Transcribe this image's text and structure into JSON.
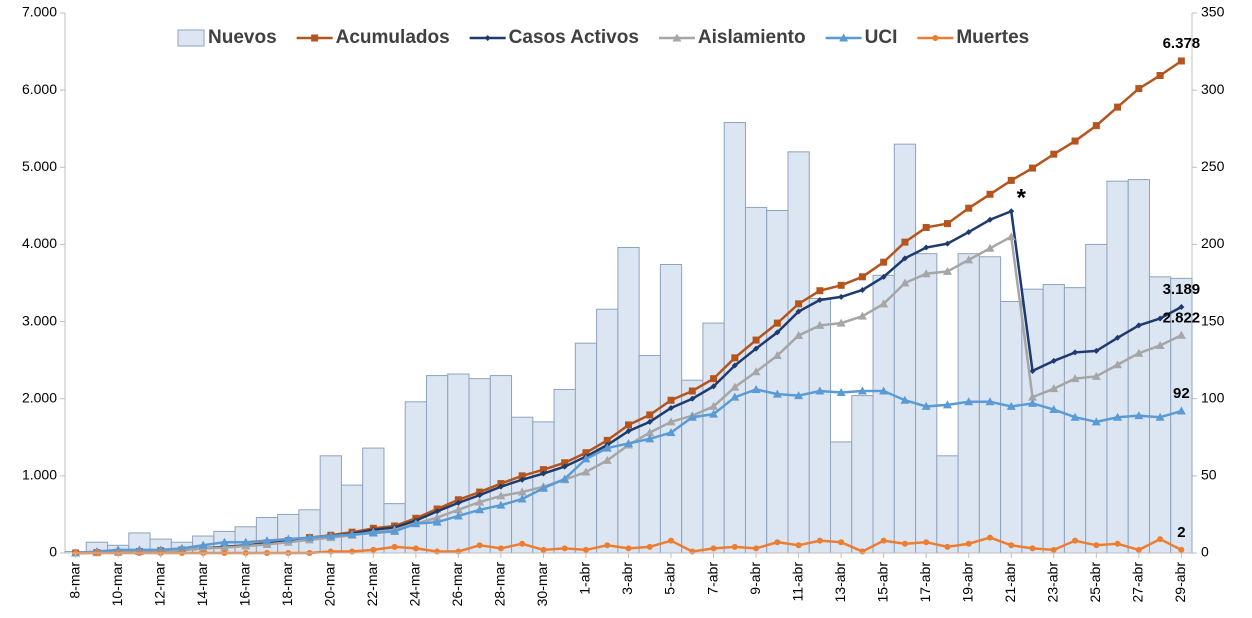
{
  "chart_data": {
    "type": "combo",
    "categories": [
      "8-mar",
      null,
      "10-mar",
      null,
      "12-mar",
      null,
      "14-mar",
      null,
      "16-mar",
      null,
      "18-mar",
      null,
      "20-mar",
      null,
      "22-mar",
      null,
      "24-mar",
      null,
      "26-mar",
      null,
      "28-mar",
      null,
      "30-mar",
      null,
      "1-abr",
      null,
      "3-abr",
      null,
      "5-abr",
      null,
      "7-abr",
      null,
      "9-abr",
      null,
      "11-abr",
      null,
      "13-abr",
      null,
      "15-abr",
      null,
      "17-abr",
      null,
      "19-abr",
      null,
      "21-abr",
      null,
      "23-abr",
      null,
      "25-abr",
      null,
      "27-abr",
      null,
      "29-abr"
    ],
    "series": [
      {
        "name": "Nuevos",
        "type": "bar",
        "axis": "y2",
        "color": "#dce6f2",
        "edge": "#8ea2bd",
        "values": [
          1,
          7,
          5,
          13,
          9,
          7,
          11,
          14,
          17,
          23,
          25,
          28,
          63,
          44,
          68,
          32,
          98,
          115,
          116,
          113,
          115,
          88,
          85,
          106,
          136,
          158,
          198,
          128,
          187,
          112,
          149,
          279,
          224,
          222,
          260,
          165,
          72,
          102,
          180,
          265,
          194,
          63,
          194,
          192,
          163,
          171,
          174,
          172,
          200,
          241,
          242,
          179,
          178
        ]
      },
      {
        "name": "Acumulados",
        "type": "line",
        "axis": "y",
        "color": "#b5541c",
        "marker": "square",
        "values": [
          0,
          5,
          10,
          20,
          30,
          40,
          60,
          80,
          100,
          130,
          160,
          200,
          230,
          270,
          320,
          350,
          450,
          570,
          690,
          790,
          900,
          1000,
          1080,
          1170,
          1300,
          1460,
          1660,
          1790,
          1980,
          2100,
          2260,
          2530,
          2760,
          2980,
          3230,
          3400,
          3470,
          3580,
          3770,
          4030,
          4220,
          4270,
          4470,
          4650,
          4830,
          4990,
          5170,
          5340,
          5540,
          5780,
          6020,
          6190,
          6378
        ],
        "value_labels": [
          null,
          null,
          null,
          null,
          null,
          null,
          null,
          null,
          null,
          null,
          null,
          null,
          null,
          null,
          null,
          null,
          null,
          null,
          null,
          null,
          null,
          null,
          null,
          null,
          null,
          null,
          null,
          null,
          null,
          null,
          null,
          null,
          null,
          null,
          null,
          null,
          null,
          null,
          null,
          null,
          null,
          null,
          null,
          null,
          null,
          null,
          null,
          null,
          null,
          null,
          null,
          null,
          "6.378"
        ]
      },
      {
        "name": "Casos Activos",
        "type": "line",
        "axis": "y",
        "color": "#1f3a6e",
        "marker": "diamond",
        "values": [
          0,
          5,
          10,
          20,
          30,
          40,
          60,
          80,
          95,
          120,
          150,
          190,
          220,
          250,
          300,
          330,
          420,
          540,
          650,
          750,
          860,
          950,
          1030,
          1120,
          1250,
          1400,
          1580,
          1700,
          1880,
          2000,
          2160,
          2430,
          2650,
          2860,
          3130,
          3280,
          3320,
          3410,
          3580,
          3820,
          3960,
          4010,
          4160,
          4320,
          4430,
          2360,
          2490,
          2600,
          2620,
          2790,
          2950,
          3040,
          3189
        ],
        "value_labels": [
          null,
          null,
          null,
          null,
          null,
          null,
          null,
          null,
          null,
          null,
          null,
          null,
          null,
          null,
          null,
          null,
          null,
          null,
          null,
          null,
          null,
          null,
          null,
          null,
          null,
          null,
          null,
          null,
          null,
          null,
          null,
          null,
          null,
          null,
          null,
          null,
          null,
          null,
          null,
          null,
          null,
          null,
          null,
          null,
          null,
          null,
          null,
          null,
          null,
          null,
          null,
          null,
          "3.189"
        ]
      },
      {
        "name": "Aislamiento",
        "type": "line",
        "axis": "y",
        "color": "#a6a6a6",
        "marker": "triangle",
        "values": [
          0,
          5,
          10,
          20,
          30,
          40,
          60,
          70,
          90,
          110,
          140,
          170,
          200,
          230,
          270,
          300,
          380,
          460,
          560,
          660,
          740,
          790,
          860,
          950,
          1050,
          1200,
          1400,
          1560,
          1700,
          1780,
          1900,
          2150,
          2350,
          2560,
          2820,
          2950,
          2980,
          3070,
          3230,
          3500,
          3620,
          3650,
          3800,
          3950,
          4100,
          2020,
          2130,
          2260,
          2290,
          2440,
          2590,
          2690,
          2822
        ],
        "value_labels": [
          null,
          null,
          null,
          null,
          null,
          null,
          null,
          null,
          null,
          null,
          null,
          null,
          null,
          null,
          null,
          null,
          null,
          null,
          null,
          null,
          null,
          null,
          null,
          null,
          null,
          null,
          null,
          null,
          null,
          null,
          null,
          null,
          null,
          null,
          null,
          null,
          null,
          null,
          null,
          null,
          null,
          null,
          null,
          null,
          null,
          null,
          null,
          null,
          null,
          null,
          null,
          null,
          "2.822"
        ]
      },
      {
        "name": "UCI",
        "type": "line",
        "axis": "y2",
        "color": "#5b9bd5",
        "marker": "triangle",
        "values": [
          0,
          1,
          2,
          2,
          2,
          3,
          5,
          7,
          7,
          8,
          9,
          10,
          11,
          12,
          13,
          14,
          19,
          20,
          24,
          28,
          31,
          35,
          42,
          48,
          61,
          68,
          71,
          74,
          78,
          88,
          90,
          101,
          106,
          103,
          102,
          105,
          104,
          105,
          105,
          99,
          95,
          96,
          98,
          98,
          95,
          97,
          93,
          88,
          85,
          88,
          89,
          88,
          92
        ],
        "value_labels": [
          null,
          null,
          null,
          null,
          null,
          null,
          null,
          null,
          null,
          null,
          null,
          null,
          null,
          null,
          null,
          null,
          null,
          null,
          null,
          null,
          null,
          null,
          null,
          null,
          null,
          null,
          null,
          null,
          null,
          null,
          null,
          null,
          null,
          null,
          null,
          null,
          null,
          null,
          null,
          null,
          null,
          null,
          null,
          null,
          null,
          null,
          null,
          null,
          null,
          null,
          null,
          null,
          "92"
        ]
      },
      {
        "name": "Muertes",
        "type": "line",
        "axis": "y2",
        "color": "#ed7d31",
        "marker": "circle",
        "values": [
          0,
          0,
          0,
          0,
          0,
          0,
          0,
          0,
          0,
          0,
          0,
          0,
          1,
          1,
          2,
          4,
          3,
          1,
          1,
          5,
          3,
          6,
          2,
          3,
          2,
          5,
          3,
          4,
          8,
          1,
          3,
          4,
          3,
          7,
          5,
          8,
          7,
          1,
          8,
          6,
          7,
          4,
          6,
          10,
          5,
          3,
          2,
          8,
          5,
          6,
          2,
          9,
          2
        ],
        "value_labels": [
          null,
          null,
          null,
          null,
          null,
          null,
          null,
          null,
          null,
          null,
          null,
          null,
          null,
          null,
          null,
          null,
          null,
          null,
          null,
          null,
          null,
          null,
          null,
          null,
          null,
          null,
          null,
          null,
          null,
          null,
          null,
          null,
          null,
          null,
          null,
          null,
          null,
          null,
          null,
          null,
          null,
          null,
          null,
          null,
          null,
          null,
          null,
          null,
          null,
          null,
          null,
          null,
          "2"
        ]
      }
    ],
    "ylim": [
      0,
      7000
    ],
    "yticks": [
      0,
      {
        "value": 1000,
        "label": "1.000"
      },
      {
        "value": 2000,
        "label": "2.000"
      },
      {
        "value": 3000,
        "label": "3.000"
      },
      {
        "value": 4000,
        "label": "4.000"
      },
      {
        "value": 5000,
        "label": "5.000"
      },
      {
        "value": 6000,
        "label": "6.000"
      },
      {
        "value": 7000,
        "label": "7.000"
      }
    ],
    "y2lim": [
      0,
      350
    ],
    "y2ticks": [
      0,
      50,
      100,
      150,
      200,
      250,
      300,
      350
    ],
    "legend": "top",
    "annotations": [
      {
        "text": "*",
        "series": "Casos Activos",
        "x": "21-abr"
      }
    ]
  }
}
